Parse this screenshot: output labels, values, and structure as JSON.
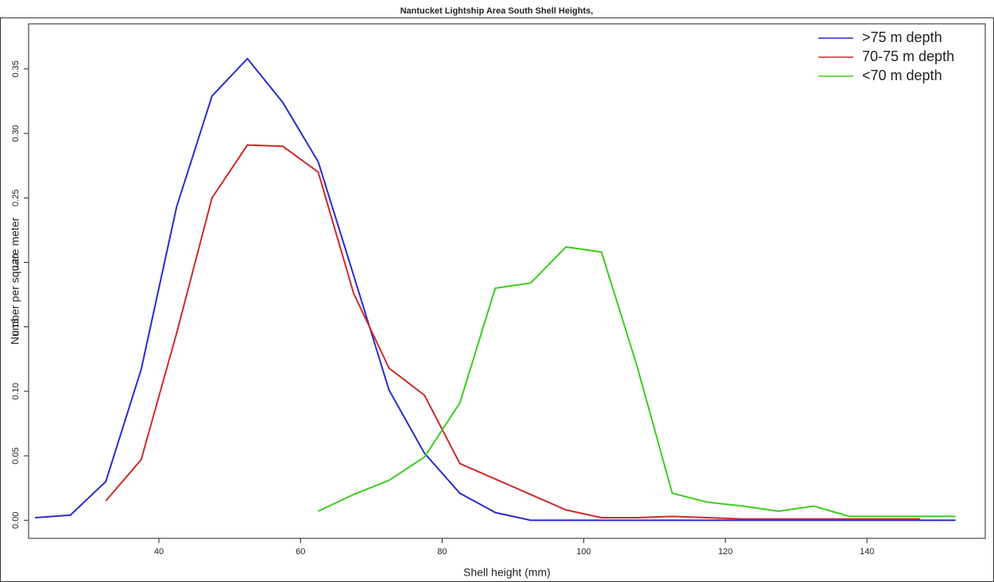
{
  "chart_data": {
    "type": "line",
    "title": "Nantucket Lightship Area South Shell Heights,",
    "x_label": "Shell height (mm)",
    "y_label": "Number per square meter",
    "x": [
      22.5,
      27.5,
      32.5,
      37.5,
      42.5,
      47.5,
      52.5,
      57.5,
      62.5,
      67.5,
      72.5,
      77.5,
      82.5,
      87.5,
      92.5,
      97.5,
      102.5,
      107.5,
      112.5,
      117.5,
      122.5,
      127.5,
      132.5,
      137.5,
      142.5,
      147.5,
      152.5
    ],
    "series": [
      {
        "name": ">75 m depth",
        "color": "#2b2bd0",
        "values": [
          0.002,
          0.004,
          0.03,
          0.117,
          0.243,
          0.329,
          0.358,
          0.324,
          0.278,
          0.19,
          0.101,
          0.052,
          0.021,
          0.006,
          0,
          0,
          0,
          0,
          0,
          0,
          0,
          0,
          0,
          0,
          0,
          0,
          0
        ]
      },
      {
        "name": "70-75 m depth",
        "color": "#cc2a2a",
        "values": [
          null,
          null,
          0.015,
          0.047,
          0.145,
          0.25,
          0.291,
          0.29,
          0.27,
          0.176,
          0.118,
          0.097,
          0.044,
          0.032,
          0.02,
          0.008,
          0.002,
          0.002,
          0.003,
          0.002,
          0.001,
          0.001,
          0.001,
          0.001,
          0.001,
          0.001,
          null
        ]
      },
      {
        "name": "<70 m depth",
        "color": "#3ccc1e",
        "values": [
          null,
          null,
          null,
          null,
          null,
          null,
          null,
          null,
          0.007,
          0.02,
          0.031,
          0.049,
          0.091,
          0.18,
          0.184,
          0.212,
          0.208,
          0.12,
          0.021,
          0.014,
          0.011,
          0.007,
          0.011,
          0.003,
          0.003,
          0.003,
          0.003
        ]
      }
    ],
    "xlim": [
      21.6,
      156.7
    ],
    "xticks": [
      40,
      60,
      80,
      100,
      120,
      140
    ],
    "ylim": [
      -0.014,
      0.385
    ],
    "yticks": [
      {
        "value": 0,
        "label": "0.00"
      },
      {
        "value": 0.05,
        "label": "0.05"
      },
      {
        "value": 0.1,
        "label": "0.10"
      },
      {
        "value": 0.15,
        "label": "0.15"
      },
      {
        "value": 0.2,
        "label": "0.20"
      },
      {
        "value": 0.25,
        "label": "0.25"
      },
      {
        "value": 0.3,
        "label": "0.30"
      },
      {
        "value": 0.35,
        "label": "0.35"
      }
    ],
    "legend": "top-right",
    "grid": false
  }
}
